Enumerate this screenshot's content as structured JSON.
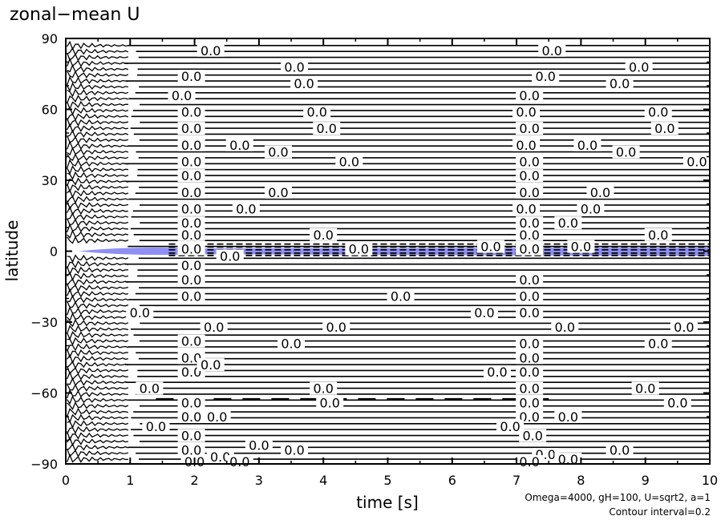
{
  "chart_data": {
    "type": "contour",
    "title": "zonal−mean U",
    "xlabel": "time [s]",
    "ylabel": "latitude",
    "xlim": [
      0,
      10
    ],
    "ylim": [
      -90,
      90
    ],
    "x_ticks": [
      0,
      1,
      2,
      3,
      4,
      5,
      6,
      7,
      8,
      9,
      10
    ],
    "x_tick_labels": [
      "0",
      "1",
      "2",
      "3",
      "4",
      "5",
      "6",
      "7",
      "8",
      "9",
      "10"
    ],
    "y_ticks": [
      -90,
      -60,
      -30,
      0,
      30,
      60,
      90
    ],
    "y_tick_labels": [
      "−90",
      "−60",
      "−30",
      "0",
      "30",
      "60",
      "90"
    ],
    "contour_interval": 0.2,
    "contour_label": "0.0",
    "contour_label_positions": [
      {
        "x": 2.25,
        "y": 85
      },
      {
        "x": 3.55,
        "y": 78
      },
      {
        "x": 7.55,
        "y": 85
      },
      {
        "x": 8.9,
        "y": 78
      },
      {
        "x": 1.95,
        "y": 74
      },
      {
        "x": 3.7,
        "y": 71
      },
      {
        "x": 7.45,
        "y": 74
      },
      {
        "x": 8.6,
        "y": 71
      },
      {
        "x": 1.8,
        "y": 66
      },
      {
        "x": 7.2,
        "y": 66
      },
      {
        "x": 3.9,
        "y": 59
      },
      {
        "x": 1.95,
        "y": 59
      },
      {
        "x": 7.15,
        "y": 59
      },
      {
        "x": 9.2,
        "y": 59
      },
      {
        "x": 4.05,
        "y": 52
      },
      {
        "x": 1.95,
        "y": 52
      },
      {
        "x": 7.2,
        "y": 52
      },
      {
        "x": 9.3,
        "y": 52
      },
      {
        "x": 2.7,
        "y": 45
      },
      {
        "x": 3.3,
        "y": 42
      },
      {
        "x": 1.95,
        "y": 45
      },
      {
        "x": 7.15,
        "y": 45
      },
      {
        "x": 8.1,
        "y": 45
      },
      {
        "x": 8.7,
        "y": 42
      },
      {
        "x": 1.95,
        "y": 38
      },
      {
        "x": 4.4,
        "y": 38
      },
      {
        "x": 7.2,
        "y": 38
      },
      {
        "x": 9.8,
        "y": 38
      },
      {
        "x": 1.95,
        "y": 32
      },
      {
        "x": 7.2,
        "y": 32
      },
      {
        "x": 3.3,
        "y": 25
      },
      {
        "x": 1.95,
        "y": 25
      },
      {
        "x": 7.2,
        "y": 25
      },
      {
        "x": 8.3,
        "y": 25
      },
      {
        "x": 2.8,
        "y": 18
      },
      {
        "x": 1.95,
        "y": 18
      },
      {
        "x": 7.15,
        "y": 18
      },
      {
        "x": 8.15,
        "y": 18
      },
      {
        "x": 1.95,
        "y": 12
      },
      {
        "x": 7.2,
        "y": 12
      },
      {
        "x": 7.8,
        "y": 12
      },
      {
        "x": 1.95,
        "y": 7
      },
      {
        "x": 4.0,
        "y": 7
      },
      {
        "x": 7.2,
        "y": 7
      },
      {
        "x": 9.2,
        "y": 7
      },
      {
        "x": 1.95,
        "y": 1
      },
      {
        "x": 4.55,
        "y": 1
      },
      {
        "x": 7.2,
        "y": 1
      },
      {
        "x": 1.95,
        "y": -6
      },
      {
        "x": 2.55,
        "y": -2
      },
      {
        "x": 6.6,
        "y": 2
      },
      {
        "x": 8.0,
        "y": 2
      },
      {
        "x": 1.95,
        "y": -12
      },
      {
        "x": 7.2,
        "y": -12
      },
      {
        "x": 5.2,
        "y": -19
      },
      {
        "x": 1.95,
        "y": -19
      },
      {
        "x": 7.2,
        "y": -19
      },
      {
        "x": 1.15,
        "y": -26
      },
      {
        "x": 6.5,
        "y": -26
      },
      {
        "x": 7.2,
        "y": -26
      },
      {
        "x": 2.3,
        "y": -32
      },
      {
        "x": 4.2,
        "y": -32
      },
      {
        "x": 7.75,
        "y": -32
      },
      {
        "x": 9.6,
        "y": -32
      },
      {
        "x": 1.95,
        "y": -38
      },
      {
        "x": 3.5,
        "y": -39
      },
      {
        "x": 7.2,
        "y": -39
      },
      {
        "x": 9.2,
        "y": -39
      },
      {
        "x": 1.95,
        "y": -45
      },
      {
        "x": 7.2,
        "y": -45
      },
      {
        "x": 1.95,
        "y": -51
      },
      {
        "x": 2.25,
        "y": -48
      },
      {
        "x": 6.7,
        "y": -51
      },
      {
        "x": 7.2,
        "y": -51
      },
      {
        "x": 1.3,
        "y": -58
      },
      {
        "x": 4.0,
        "y": -58
      },
      {
        "x": 7.2,
        "y": -58
      },
      {
        "x": 9.0,
        "y": -58
      },
      {
        "x": 1.95,
        "y": -64
      },
      {
        "x": 4.1,
        "y": -64
      },
      {
        "x": 7.2,
        "y": -64
      },
      {
        "x": 9.5,
        "y": -64
      },
      {
        "x": 1.95,
        "y": -70
      },
      {
        "x": 2.35,
        "y": -70
      },
      {
        "x": 7.2,
        "y": -70
      },
      {
        "x": 7.8,
        "y": -70
      },
      {
        "x": 1.4,
        "y": -74
      },
      {
        "x": 6.9,
        "y": -74
      },
      {
        "x": 1.95,
        "y": -78
      },
      {
        "x": 3.0,
        "y": -82
      },
      {
        "x": 3.55,
        "y": -84
      },
      {
        "x": 7.25,
        "y": -78
      },
      {
        "x": 8.6,
        "y": -84
      },
      {
        "x": 1.95,
        "y": -84
      },
      {
        "x": 2.4,
        "y": -87
      },
      {
        "x": 2.7,
        "y": -89
      },
      {
        "x": 7.45,
        "y": -86
      },
      {
        "x": 7.8,
        "y": -88
      },
      {
        "x": 7.2,
        "y": -89
      },
      {
        "x": 2.0,
        "y": -89
      }
    ],
    "shading": {
      "region": "negative values near equator",
      "color": "#6a6af0"
    },
    "annotations": [
      "Omega=4000, gH=100, U=sqrt2, a=1",
      "Contour interval=0.2"
    ]
  }
}
